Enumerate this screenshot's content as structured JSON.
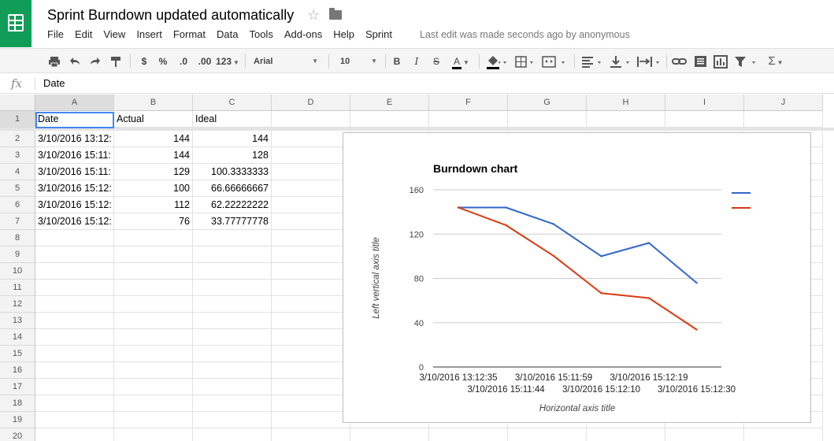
{
  "app": {
    "doc_title": "Sprint Burndown updated automatically",
    "menus": [
      "File",
      "Edit",
      "View",
      "Insert",
      "Format",
      "Data",
      "Tools",
      "Add-ons",
      "Help",
      "Sprint"
    ],
    "last_edit": "Last edit was made seconds ago by anonymous"
  },
  "toolbar": {
    "currency": "$",
    "percent": "%",
    "decrease_decimals": ".0",
    "increase_decimals": ".00",
    "more_formats": "123",
    "font": "Arial",
    "font_size": "10",
    "bold": "B",
    "italic": "I",
    "strikethrough": "S",
    "text_color": "A",
    "functions": "Σ"
  },
  "formula_bar": {
    "fx": "fx",
    "value": "Date"
  },
  "sheet": {
    "columns": [
      "A",
      "B",
      "C",
      "D",
      "E",
      "F",
      "G",
      "H",
      "I",
      "J"
    ],
    "rows": [
      "1",
      "2",
      "3",
      "4",
      "5",
      "6",
      "7",
      "8",
      "9",
      "10",
      "11",
      "12",
      "13",
      "14",
      "15",
      "16",
      "17",
      "18",
      "19",
      "20"
    ],
    "header_row": [
      "Date",
      "Actual",
      "Ideal"
    ],
    "data": [
      [
        "3/10/2016 13:12:",
        "144",
        "144"
      ],
      [
        "3/10/2016 15:11:",
        "144",
        "128"
      ],
      [
        "3/10/2016 15:11:",
        "129",
        "100.3333333"
      ],
      [
        "3/10/2016 15:12:",
        "100",
        "66.66666667"
      ],
      [
        "3/10/2016 15:12:",
        "112",
        "62.22222222"
      ],
      [
        "3/10/2016 15:12:",
        "76",
        "33.77777778"
      ]
    ]
  },
  "chart_data": {
    "type": "line",
    "title": "Burndown chart",
    "xlabel": "Horizontal axis title",
    "ylabel": "Left vertical axis title",
    "categories": [
      "3/10/2016 13:12:35",
      "3/10/2016 15:11:44",
      "3/10/2016 15:11:59",
      "3/10/2016 15:12:10",
      "3/10/2016 15:12:19",
      "3/10/2016 15:12:30"
    ],
    "series": [
      {
        "values": [
          144,
          144,
          129,
          100,
          112,
          76
        ],
        "color": "#3366cc"
      },
      {
        "values": [
          144,
          128,
          100.3333333,
          66.66666667,
          62.22222222,
          33.77777778
        ],
        "color": "#dc3912"
      }
    ],
    "ylim": [
      0,
      160
    ],
    "yticks": [
      "0",
      "40",
      "80",
      "120",
      "160"
    ],
    "grid": true,
    "legend": "right"
  }
}
